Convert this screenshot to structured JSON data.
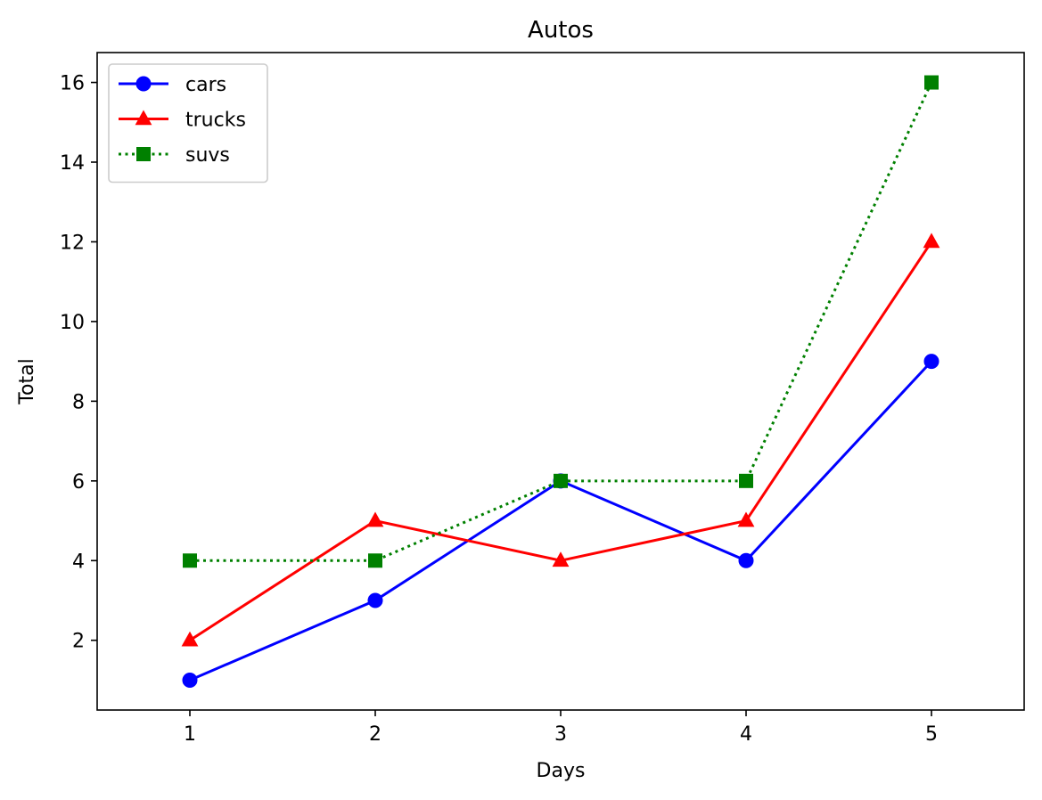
{
  "chart_data": {
    "type": "line",
    "title": "Autos",
    "xlabel": "Days",
    "ylabel": "Total",
    "x": [
      1,
      2,
      3,
      4,
      5
    ],
    "x_ticks": [
      1,
      2,
      3,
      4,
      5
    ],
    "y_ticks": [
      2,
      4,
      6,
      8,
      10,
      12,
      14,
      16
    ],
    "xlim": [
      0.5,
      5.5
    ],
    "ylim": [
      0.25,
      16.75
    ],
    "grid": false,
    "legend_position": "top-left",
    "series": [
      {
        "name": "cars",
        "values": [
          1,
          3,
          6,
          4,
          9
        ],
        "color": "#0000ff",
        "marker": "circle",
        "line_style": "solid"
      },
      {
        "name": "trucks",
        "values": [
          2,
          5,
          4,
          5,
          12
        ],
        "color": "#ff0000",
        "marker": "triangle",
        "line_style": "solid"
      },
      {
        "name": "suvs",
        "values": [
          4,
          4,
          6,
          6,
          16
        ],
        "color": "#008000",
        "marker": "square",
        "line_style": "dotted"
      }
    ]
  }
}
